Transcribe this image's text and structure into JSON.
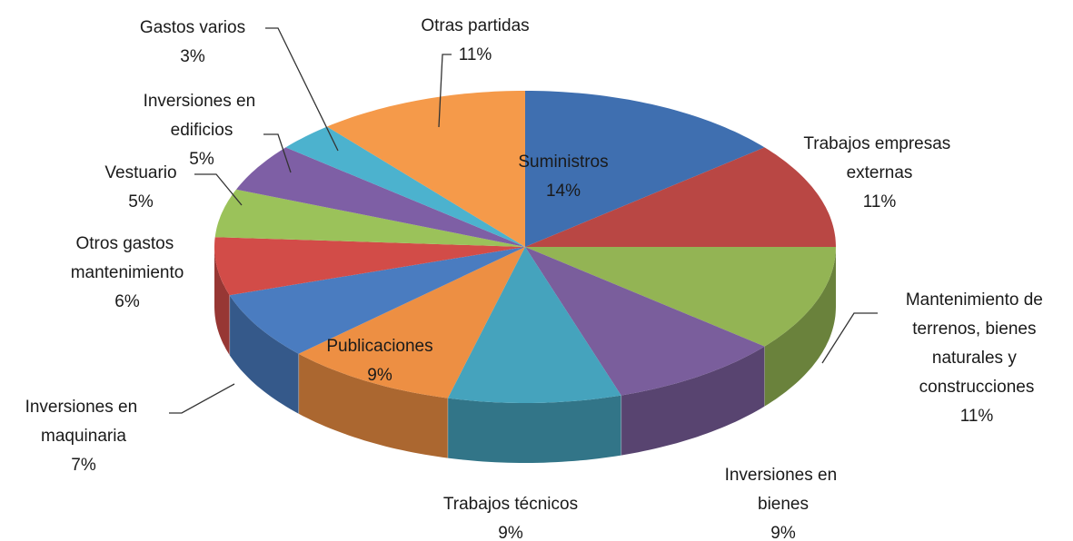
{
  "chart_data": {
    "type": "pie3d",
    "categories": [
      "Suministros",
      "Trabajos empresas externas",
      "Mantenimiento de terrenos, bienes naturales y construcciones",
      "Inversiones en bienes",
      "Trabajos técnicos",
      "Publicaciones",
      "Inversiones en maquinaria",
      "Otros gastos mantenimiento",
      "Vestuario",
      "Inversiones en edificios",
      "Gastos varios",
      "Otras partidas"
    ],
    "values": [
      14,
      11,
      11,
      9,
      9,
      9,
      7,
      6,
      5,
      5,
      3,
      11
    ],
    "value_labels": [
      "14%",
      "11%",
      "11%",
      "9%",
      "9%",
      "9%",
      "7%",
      "6%",
      "5%",
      "5%",
      "3%",
      "11%"
    ],
    "colors": [
      "#3f6fb0",
      "#b94744",
      "#93b454",
      "#7a5e9c",
      "#45a3bd",
      "#ed8f43",
      "#4a7cc0",
      "#d24c48",
      "#9bc25a",
      "#7e5fa5",
      "#4cb2ce",
      "#f59a4a"
    ]
  }
}
